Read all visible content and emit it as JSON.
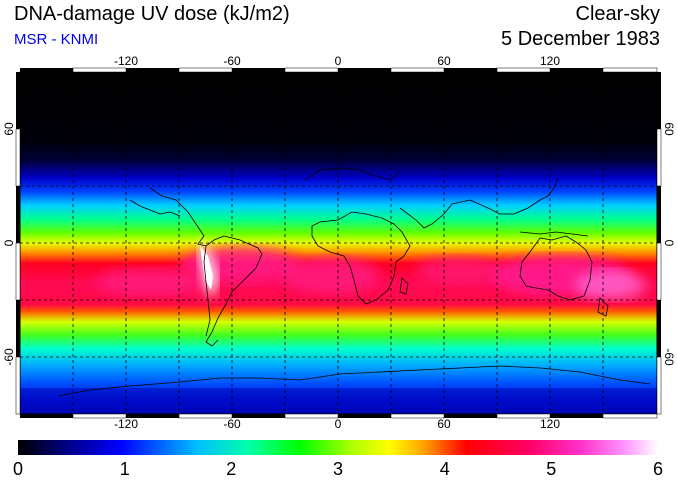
{
  "header": {
    "title": "DNA-damage UV dose (kJ/m2)",
    "source": "MSR - KNMI",
    "condition": "Clear-sky",
    "date": "5 December 1983"
  },
  "map": {
    "lon_ticks": [
      "-120",
      "-60",
      "0",
      "60",
      "120"
    ],
    "lat_ticks_left": [
      "60",
      "0",
      "-60"
    ],
    "lat_ticks_right": [
      "60",
      "0",
      "-60"
    ]
  },
  "colorbar": {
    "labels": [
      "0",
      "1",
      "2",
      "3",
      "4",
      "5",
      "6"
    ],
    "colors": [
      "#000000",
      "#00008b",
      "#0000ff",
      "#00bfff",
      "#00ffaa",
      "#00ff00",
      "#aaff00",
      "#ffff00",
      "#ffaa00",
      "#ff0000",
      "#ff0066",
      "#ff33cc",
      "#ff99ff",
      "#ffffff"
    ]
  }
}
